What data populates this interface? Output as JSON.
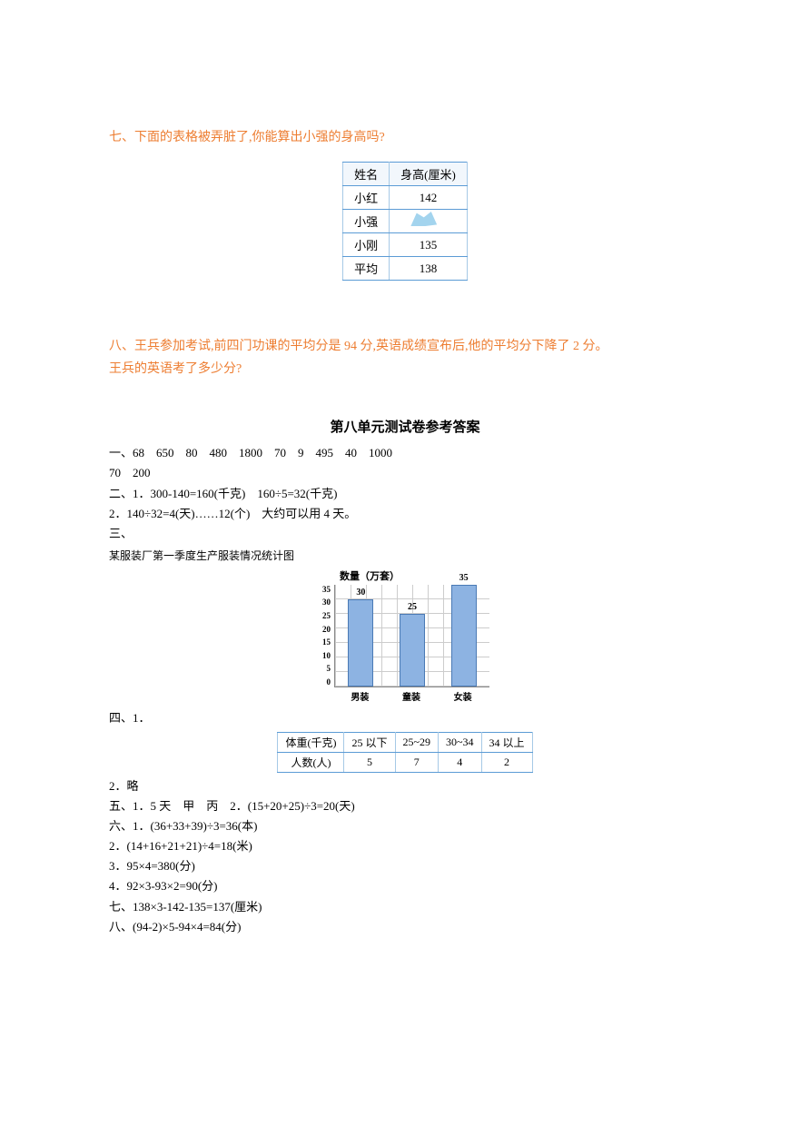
{
  "q7": {
    "heading": "七、下面的表格被弄脏了,你能算出小强的身高吗?",
    "table": {
      "headers": [
        "姓名",
        "身高(厘米)"
      ],
      "rows": [
        {
          "name": "小红",
          "h": "142"
        },
        {
          "name": "小强",
          "h": ""
        },
        {
          "name": "小刚",
          "h": "135"
        },
        {
          "name": "平均",
          "h": "138"
        }
      ]
    }
  },
  "q8": {
    "line1": "八、王兵参加考试,前四门功课的平均分是 94 分,英语成绩宣布后,他的平均分下降了 2 分。",
    "line2": "王兵的英语考了多少分?"
  },
  "answers": {
    "title": "第八单元测试卷参考答案",
    "a1_l1": "一、68　650　80　480　1800　70　9　495　40　1000",
    "a1_l2": "70　200",
    "a2_l1": "二、1．300-140=160(千克)　160÷5=32(千克)",
    "a2_l2": "2．140÷32=4(天)……12(个)　大约可以用 4 天。",
    "a3_l1": "三、",
    "chart_title": "某服装厂第一季度生产服装情况统计图",
    "chart": {
      "ylabel": "数量（万套）",
      "ymin": 0,
      "ymax": 35,
      "ystep": 5,
      "yticks": [
        "35",
        "30",
        "25",
        "20",
        "15",
        "10",
        "5",
        "0"
      ],
      "categories": [
        "男装",
        "童装",
        "女装"
      ],
      "values": [
        30,
        25,
        35
      ],
      "bar_color": "#8db3e2",
      "bar_border": "#4a7ab5",
      "grid_color": "#cccccc",
      "bg": "#ffffff"
    },
    "a4_l1": "四、1．",
    "t4": {
      "headers": [
        "体重(千克)",
        "25 以下",
        "25~29",
        "30~34",
        "34 以上"
      ],
      "row": [
        "人数(人)",
        "5",
        "7",
        "4",
        "2"
      ]
    },
    "a4_l2": "2．略",
    "a5": "五、1．5 天　甲　丙　2．(15+20+25)÷3=20(天)",
    "a6_l1": "六、1．(36+33+39)÷3=36(本)",
    "a6_l2": "2．(14+16+21+21)÷4=18(米)",
    "a6_l3": "3．95×4=380(分)",
    "a6_l4": "4．92×3-93×2=90(分)",
    "a7": "七、138×3-142-135=137(厘米)",
    "a8": "八、(94-2)×5-94×4=84(分)"
  }
}
